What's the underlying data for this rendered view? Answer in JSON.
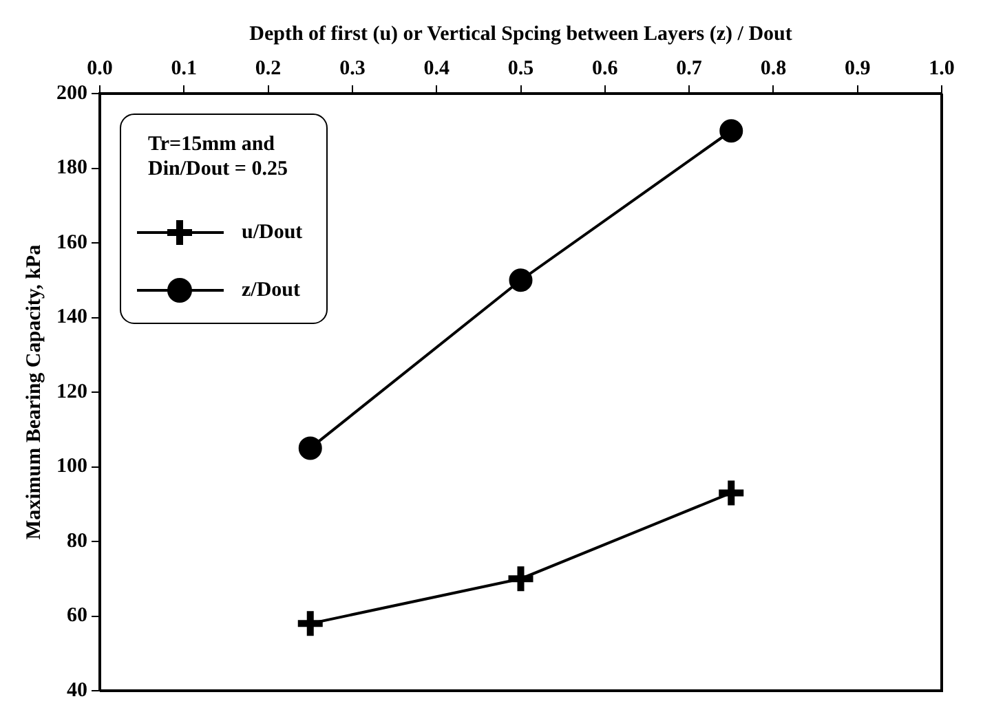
{
  "chart_data": {
    "type": "line",
    "xlabel": "Depth of first (u) or Vertical Spcing between Layers (z) / Dout",
    "ylabel": "Maximum Bearing Capacity, kPa",
    "legend_title": "Tr=15mm and\nDin/Dout = 0.25",
    "legend": "top left",
    "grid": false,
    "line_style": "solid",
    "xlim": [
      0,
      1
    ],
    "xticks": [
      {
        "value": 0,
        "label": "0.0"
      },
      {
        "value": 0.1,
        "label": "0.1"
      },
      {
        "value": 0.2,
        "label": "0.2"
      },
      {
        "value": 0.3,
        "label": "0.3"
      },
      {
        "value": 0.4,
        "label": "0.4"
      },
      {
        "value": 0.5,
        "label": "0.5"
      },
      {
        "value": 0.6,
        "label": "0.6"
      },
      {
        "value": 0.7,
        "label": "0.7"
      },
      {
        "value": 0.8,
        "label": "0.8"
      },
      {
        "value": 0.9,
        "label": "0.9"
      },
      {
        "value": 1,
        "label": "1.0"
      }
    ],
    "ylim": [
      40,
      200
    ],
    "yticks": [
      40,
      60,
      80,
      100,
      120,
      140,
      160,
      180,
      200
    ],
    "series": [
      {
        "name": "u/Dout",
        "color": "#000000",
        "marker": "cross",
        "x": [
          0.25,
          0.5,
          0.75
        ],
        "values": [
          58,
          70,
          93
        ]
      },
      {
        "name": "z/Dout",
        "color": "#000000",
        "marker": "circle",
        "x": [
          0.25,
          0.5,
          0.75
        ],
        "values": [
          105,
          150,
          190
        ]
      }
    ]
  }
}
